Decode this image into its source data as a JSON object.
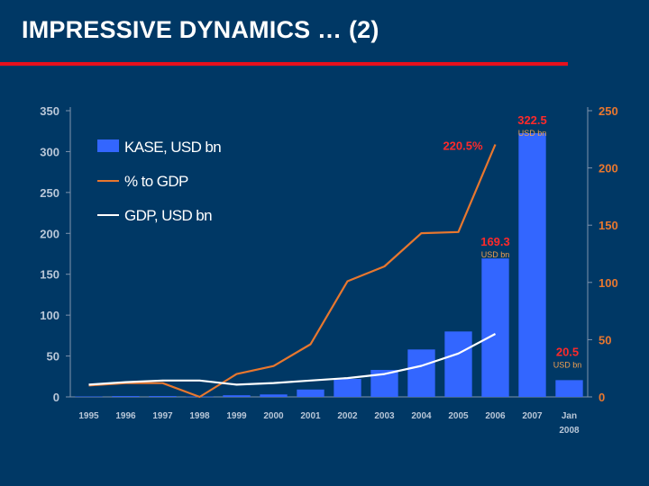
{
  "slide": {
    "title": "IMPRESSIVE DYNAMICS … (2)"
  },
  "colors": {
    "background": "#003865",
    "title_rule": "#e8101d",
    "bar": "#3366ff",
    "pct_line": "#e8772e",
    "gdp_line": "#ffffff",
    "axis_text": "#b9c7d8",
    "right_axis_text": "#e8772e",
    "callout_value": "#ff2a2a",
    "callout_unit": "#f0a050"
  },
  "chart_data": {
    "type": "bar",
    "categories": [
      "1995",
      "1996",
      "1997",
      "1998",
      "1999",
      "2000",
      "2001",
      "2002",
      "2003",
      "2004",
      "2005",
      "2006",
      "2007",
      "Jan 2008"
    ],
    "left_axis": {
      "ylim": [
        0,
        350
      ],
      "ticks": [
        "0",
        "50",
        "100",
        "150",
        "200",
        "250",
        "300",
        "350"
      ]
    },
    "right_axis": {
      "ylim": [
        0,
        250
      ],
      "ticks": [
        "0",
        "50",
        "100",
        "150",
        "200",
        "250"
      ]
    },
    "legend": {
      "placement": "top-left",
      "entries": [
        "KASE, USD bn",
        "% to GDP",
        "GDP, USD bn"
      ]
    },
    "series": [
      {
        "name": "KASE, USD bn",
        "kind": "bar",
        "axis": "left",
        "values": [
          0.5,
          1,
          1,
          0.5,
          2,
          3,
          9,
          22,
          33,
          58,
          80,
          169.3,
          322.5,
          20.5
        ]
      },
      {
        "name": "% to GDP",
        "kind": "line",
        "axis": "right",
        "values": [
          10,
          12,
          12,
          0,
          20,
          27,
          46,
          101,
          114,
          143,
          144,
          220.5,
          null,
          null
        ]
      },
      {
        "name": "GDP, USD bn",
        "kind": "line",
        "axis": "left",
        "values": [
          15,
          18,
          20,
          20,
          15,
          17,
          20,
          23,
          28,
          38,
          53,
          77,
          null,
          null
        ]
      }
    ],
    "annotations": [
      {
        "value": "322.5",
        "unit": "USD bn",
        "category": "2007",
        "axis": "left",
        "y": 322.5
      },
      {
        "value": "220.5%",
        "unit": "",
        "category": "2006",
        "axis": "right",
        "y": 220.5
      },
      {
        "value": "169.3",
        "unit": "USD bn",
        "category": "2006",
        "axis": "left",
        "y": 169.3
      },
      {
        "value": "20.5",
        "unit": "USD bn",
        "category": "Jan 2008",
        "axis": "left",
        "y": 20.5
      }
    ]
  }
}
